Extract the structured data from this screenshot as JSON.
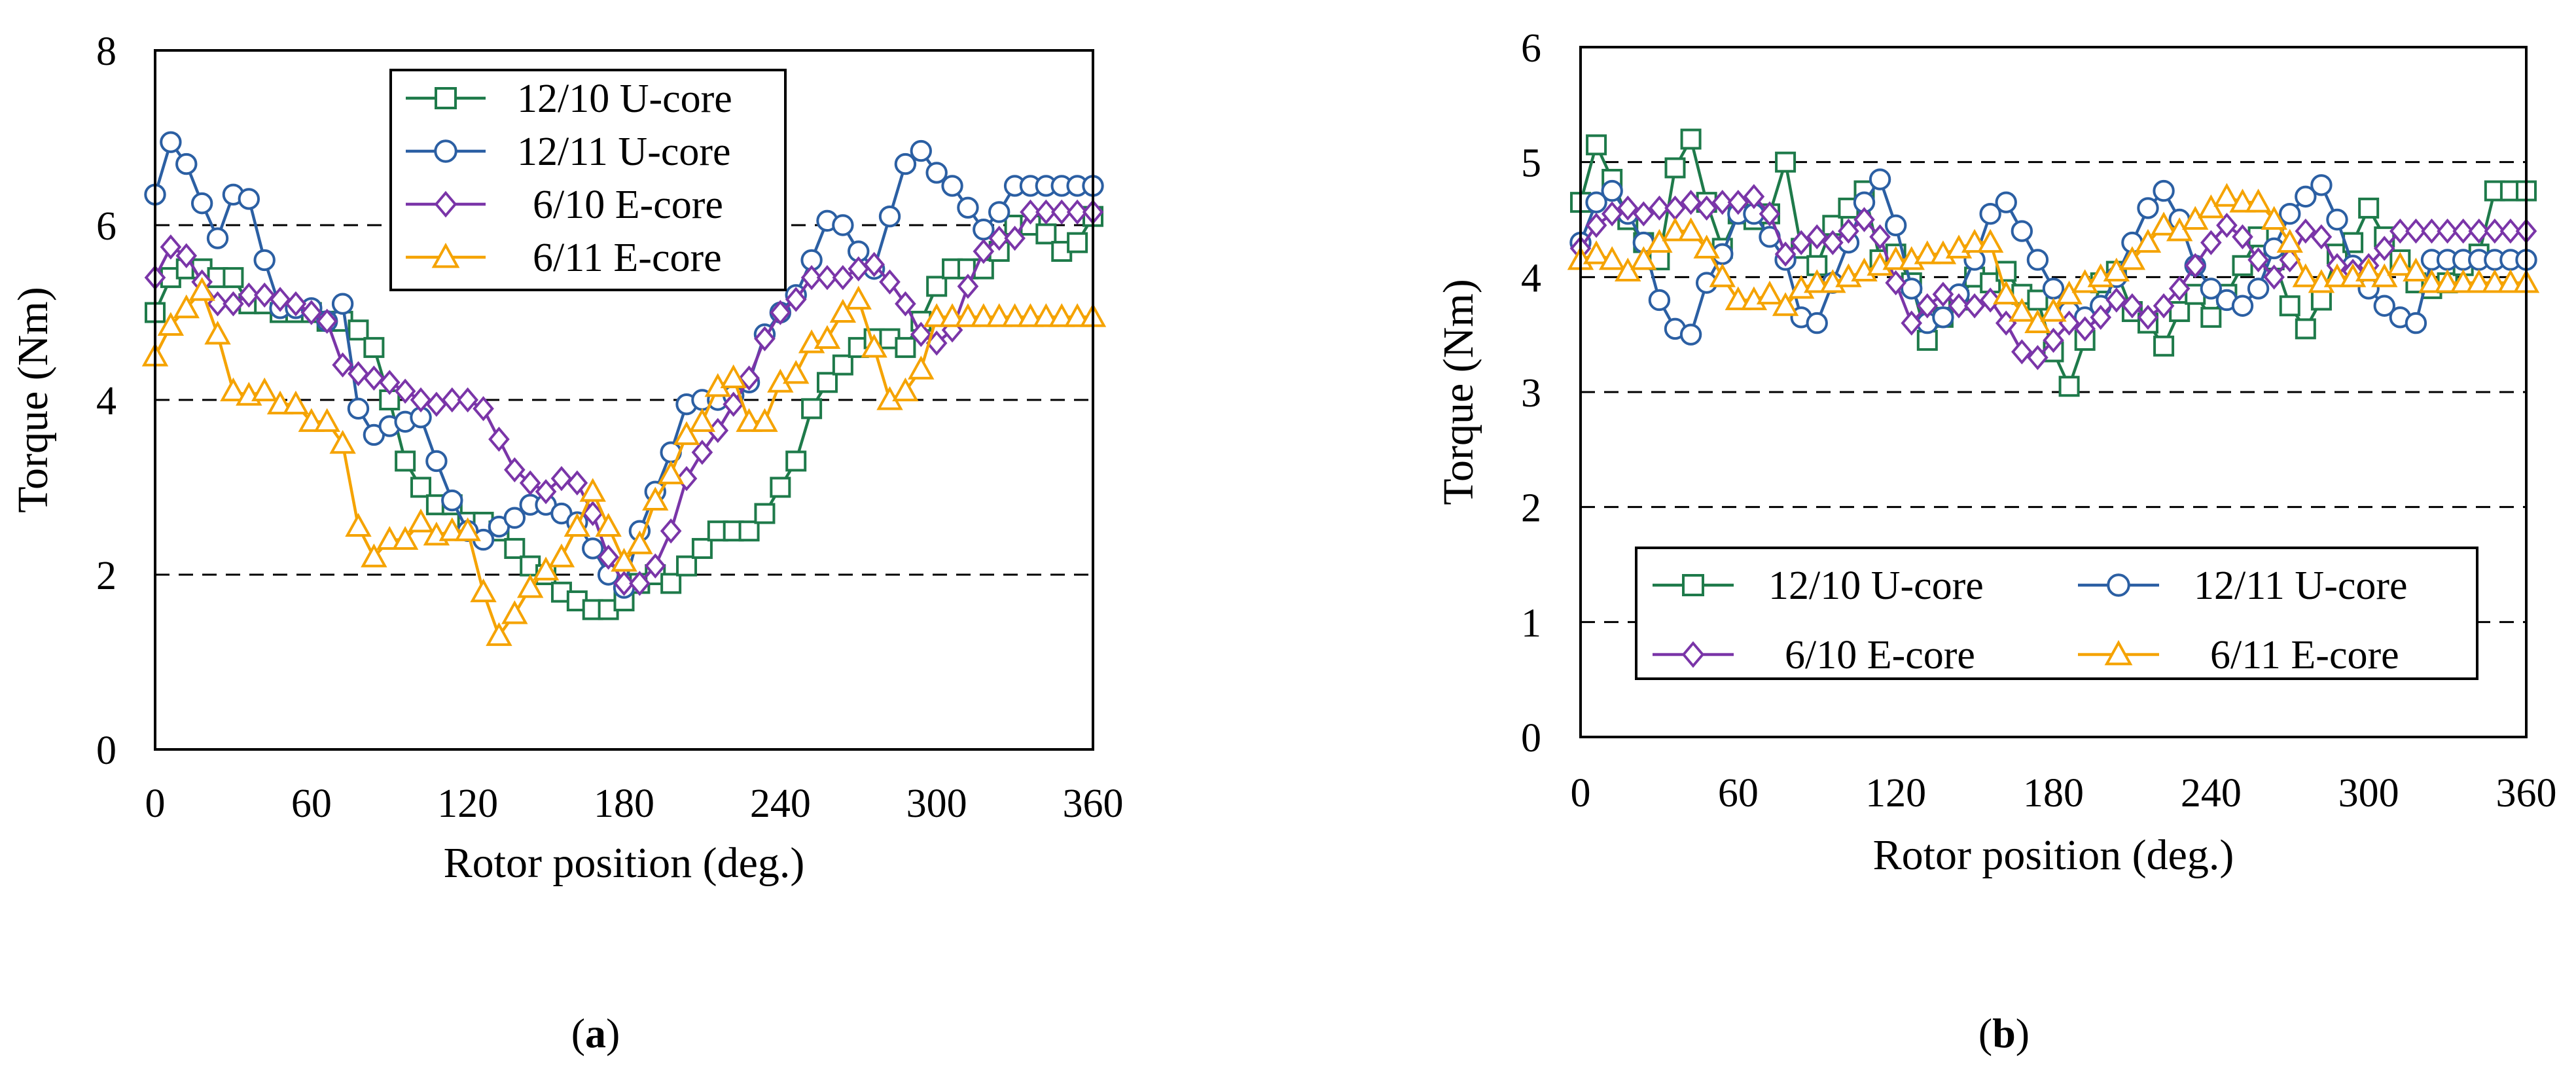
{
  "colors": {
    "12/10 U-core": "#1E7A4A",
    "12/11 U-core": "#2B5FA3",
    "6/10 E-core": "#7A35A8",
    "6/11 E-core": "#F5A300"
  },
  "panels": [
    {
      "label_prefix": "(",
      "label_letter": "a",
      "label_suffix": ")"
    },
    {
      "label_prefix": "(",
      "label_letter": "b",
      "label_suffix": ")"
    }
  ],
  "chart_data": [
    {
      "type": "line",
      "xlabel": "Rotor position (deg.)",
      "ylabel": "Torque (Nm)",
      "xlim": [
        0,
        360
      ],
      "ylim": [
        0,
        8
      ],
      "xticks": [
        "0",
        "60",
        "120",
        "180",
        "240",
        "300",
        "360"
      ],
      "yticks": [
        "0",
        "2",
        "4",
        "6",
        "8"
      ],
      "grid": "horizontal dashed at y=2, 4, 6",
      "legend_position": "top-center",
      "series": [
        {
          "name": "12/10 U-core",
          "marker": "square",
          "x": [
            0,
            6,
            12,
            18,
            24,
            30,
            36,
            42,
            48,
            54,
            60,
            66,
            72,
            78,
            84,
            90,
            96,
            102,
            108,
            114,
            120,
            126,
            132,
            138,
            144,
            150,
            156,
            162,
            168,
            174,
            180,
            186,
            192,
            198,
            204,
            210,
            216,
            222,
            228,
            234,
            240,
            246,
            252,
            258,
            264,
            270,
            276,
            282,
            288,
            294,
            300,
            306,
            312,
            318,
            324,
            330,
            336,
            342,
            348,
            354,
            360
          ],
          "y": [
            5.0,
            5.4,
            5.5,
            5.5,
            5.4,
            5.4,
            5.1,
            5.1,
            5.0,
            5.0,
            5.0,
            4.9,
            4.9,
            4.8,
            4.6,
            4.0,
            3.3,
            3.0,
            2.8,
            2.8,
            2.6,
            2.6,
            2.5,
            2.3,
            2.1,
            2.0,
            1.8,
            1.7,
            1.6,
            1.6,
            1.7,
            1.9,
            2.0,
            1.9,
            2.1,
            2.3,
            2.5,
            2.5,
            2.5,
            2.7,
            3.0,
            3.3,
            3.9,
            4.2,
            4.4,
            4.6,
            4.7,
            4.7,
            4.6,
            4.9,
            5.3,
            5.5,
            5.5,
            5.5,
            5.7,
            6.0,
            6.0,
            5.9,
            5.7,
            5.8,
            6.1
          ]
        },
        {
          "name": "12/11 U-core",
          "marker": "circle",
          "x": [
            0,
            6,
            12,
            18,
            24,
            30,
            36,
            42,
            48,
            54,
            60,
            66,
            72,
            78,
            84,
            90,
            96,
            102,
            108,
            114,
            120,
            126,
            132,
            138,
            144,
            150,
            156,
            162,
            168,
            174,
            180,
            186,
            192,
            198,
            204,
            210,
            216,
            222,
            228,
            234,
            240,
            246,
            252,
            258,
            264,
            270,
            276,
            282,
            288,
            294,
            300,
            306,
            312,
            318,
            324,
            330,
            336,
            342,
            348,
            354,
            360
          ],
          "y": [
            6.35,
            6.95,
            6.7,
            6.25,
            5.85,
            6.35,
            6.3,
            5.6,
            5.05,
            5.05,
            5.05,
            4.9,
            5.1,
            3.9,
            3.6,
            3.7,
            3.75,
            3.8,
            3.3,
            2.85,
            2.5,
            2.4,
            2.55,
            2.65,
            2.8,
            2.8,
            2.7,
            2.6,
            2.3,
            2.0,
            1.85,
            2.5,
            2.95,
            3.4,
            3.95,
            4.0,
            4.0,
            4.05,
            4.2,
            4.75,
            5.0,
            5.2,
            5.6,
            6.05,
            6.0,
            5.7,
            5.5,
            6.1,
            6.7,
            6.85,
            6.6,
            6.45,
            6.2,
            5.95,
            6.15,
            6.45,
            6.45,
            6.45,
            6.45,
            6.45,
            6.45
          ]
        },
        {
          "name": "6/10 E-core",
          "marker": "diamond",
          "x": [
            0,
            6,
            12,
            18,
            24,
            30,
            36,
            42,
            48,
            54,
            60,
            66,
            72,
            78,
            84,
            90,
            96,
            102,
            108,
            114,
            120,
            126,
            132,
            138,
            144,
            150,
            156,
            162,
            168,
            174,
            180,
            186,
            192,
            198,
            204,
            210,
            216,
            222,
            228,
            234,
            240,
            246,
            252,
            258,
            264,
            270,
            276,
            282,
            288,
            294,
            300,
            306,
            312,
            318,
            324,
            330,
            336,
            342,
            348,
            354,
            360
          ],
          "y": [
            5.4,
            5.75,
            5.65,
            5.35,
            5.1,
            5.1,
            5.2,
            5.2,
            5.15,
            5.1,
            5.0,
            4.9,
            4.4,
            4.3,
            4.25,
            4.2,
            4.1,
            4.0,
            3.95,
            4.0,
            4.0,
            3.9,
            3.55,
            3.2,
            3.05,
            2.95,
            3.1,
            3.05,
            2.7,
            2.2,
            1.9,
            1.9,
            2.1,
            2.5,
            3.1,
            3.4,
            3.65,
            3.95,
            4.25,
            4.7,
            5.0,
            5.15,
            5.4,
            5.4,
            5.4,
            5.5,
            5.55,
            5.35,
            5.1,
            4.75,
            4.65,
            4.8,
            5.3,
            5.7,
            5.85,
            5.85,
            6.15,
            6.15,
            6.15,
            6.15,
            6.15
          ]
        },
        {
          "name": "6/11 E-core",
          "marker": "triangle",
          "x": [
            0,
            6,
            12,
            18,
            24,
            30,
            36,
            42,
            48,
            54,
            60,
            66,
            72,
            78,
            84,
            90,
            96,
            102,
            108,
            114,
            120,
            126,
            132,
            138,
            144,
            150,
            156,
            162,
            168,
            174,
            180,
            186,
            192,
            198,
            204,
            210,
            216,
            222,
            228,
            234,
            240,
            246,
            252,
            258,
            264,
            270,
            276,
            282,
            288,
            294,
            300,
            306,
            312,
            318,
            324,
            330,
            336,
            342,
            348,
            354,
            360
          ],
          "y": [
            4.5,
            4.85,
            5.05,
            5.25,
            4.75,
            4.1,
            4.05,
            4.1,
            3.95,
            3.95,
            3.75,
            3.75,
            3.5,
            2.55,
            2.2,
            2.4,
            2.4,
            2.6,
            2.45,
            2.5,
            2.5,
            1.8,
            1.3,
            1.55,
            1.85,
            2.05,
            2.2,
            2.55,
            2.95,
            2.55,
            2.15,
            2.35,
            2.85,
            3.15,
            3.6,
            3.75,
            4.15,
            4.25,
            3.75,
            3.75,
            4.2,
            4.3,
            4.65,
            4.7,
            5.0,
            5.15,
            4.6,
            4.0,
            4.1,
            4.35,
            4.95,
            4.95,
            4.95,
            4.95,
            4.95,
            4.95,
            4.95,
            4.95,
            4.95,
            4.95,
            4.95
          ]
        }
      ]
    },
    {
      "type": "line",
      "xlabel": "Rotor position (deg.)",
      "ylabel": "Torque (Nm)",
      "xlim": [
        0,
        360
      ],
      "ylim": [
        0,
        6
      ],
      "xticks": [
        "0",
        "60",
        "120",
        "180",
        "240",
        "300",
        "360"
      ],
      "yticks": [
        "0",
        "1",
        "2",
        "3",
        "4",
        "5",
        "6"
      ],
      "grid": "horizontal dashed at y=1, 2, 3, 4, 5",
      "legend_position": "bottom-center",
      "series": [
        {
          "name": "12/10 U-core",
          "marker": "square",
          "x": [
            0,
            6,
            12,
            18,
            24,
            30,
            36,
            42,
            48,
            54,
            60,
            66,
            72,
            78,
            84,
            90,
            96,
            102,
            108,
            114,
            120,
            126,
            132,
            138,
            144,
            150,
            156,
            162,
            168,
            174,
            180,
            186,
            192,
            198,
            204,
            210,
            216,
            222,
            228,
            234,
            240,
            246,
            252,
            258,
            264,
            270,
            276,
            282,
            288,
            294,
            300,
            306,
            312,
            318,
            324,
            330,
            336,
            342,
            348,
            354,
            360
          ],
          "y": [
            4.65,
            5.15,
            4.85,
            4.5,
            4.3,
            4.15,
            4.95,
            5.2,
            4.65,
            4.25,
            4.55,
            4.5,
            4.55,
            5.0,
            4.25,
            4.1,
            4.45,
            4.6,
            4.75,
            4.15,
            4.2,
            3.95,
            3.45,
            3.65,
            3.8,
            4.0,
            3.95,
            4.05,
            3.85,
            3.8,
            3.35,
            3.05,
            3.45,
            3.95,
            4.05,
            3.7,
            3.6,
            3.4,
            3.7,
            3.85,
            3.65,
            3.85,
            4.1,
            4.35,
            4.15,
            3.75,
            3.55,
            3.8,
            4.2,
            4.3,
            4.6,
            4.35,
            4.15,
            3.95,
            3.9,
            3.95,
            4.1,
            4.2,
            4.75,
            4.75,
            4.75
          ]
        },
        {
          "name": "12/11 U-core",
          "marker": "circle",
          "x": [
            0,
            6,
            12,
            18,
            24,
            30,
            36,
            42,
            48,
            54,
            60,
            66,
            72,
            78,
            84,
            90,
            96,
            102,
            108,
            114,
            120,
            126,
            132,
            138,
            144,
            150,
            156,
            162,
            168,
            174,
            180,
            186,
            192,
            198,
            204,
            210,
            216,
            222,
            228,
            234,
            240,
            246,
            252,
            258,
            264,
            270,
            276,
            282,
            288,
            294,
            300,
            306,
            312,
            318,
            324,
            330,
            336,
            342,
            348,
            354,
            360
          ],
          "y": [
            4.3,
            4.65,
            4.75,
            4.55,
            4.3,
            3.8,
            3.55,
            3.5,
            3.95,
            4.2,
            4.55,
            4.55,
            4.35,
            4.15,
            3.65,
            3.6,
            3.95,
            4.3,
            4.65,
            4.85,
            4.45,
            3.9,
            3.6,
            3.65,
            3.85,
            4.15,
            4.55,
            4.65,
            4.4,
            4.15,
            3.9,
            3.7,
            3.65,
            3.75,
            4.0,
            4.3,
            4.6,
            4.75,
            4.5,
            4.1,
            3.9,
            3.8,
            3.75,
            3.9,
            4.25,
            4.55,
            4.7,
            4.8,
            4.5,
            4.1,
            3.9,
            3.75,
            3.65,
            3.6,
            4.15,
            4.15,
            4.15,
            4.15,
            4.15,
            4.15,
            4.15
          ]
        },
        {
          "name": "6/10 E-core",
          "marker": "diamond",
          "x": [
            0,
            6,
            12,
            18,
            24,
            30,
            36,
            42,
            48,
            54,
            60,
            66,
            72,
            78,
            84,
            90,
            96,
            102,
            108,
            114,
            120,
            126,
            132,
            138,
            144,
            150,
            156,
            162,
            168,
            174,
            180,
            186,
            192,
            198,
            204,
            210,
            216,
            222,
            228,
            234,
            240,
            246,
            252,
            258,
            264,
            270,
            276,
            282,
            288,
            294,
            300,
            306,
            312,
            318,
            324,
            330,
            336,
            342,
            348,
            354,
            360
          ],
          "y": [
            4.25,
            4.45,
            4.55,
            4.6,
            4.55,
            4.6,
            4.6,
            4.65,
            4.6,
            4.65,
            4.65,
            4.7,
            4.55,
            4.2,
            4.3,
            4.35,
            4.3,
            4.4,
            4.5,
            4.35,
            3.95,
            3.6,
            3.75,
            3.85,
            3.75,
            3.75,
            3.8,
            3.6,
            3.35,
            3.3,
            3.45,
            3.6,
            3.55,
            3.65,
            3.8,
            3.75,
            3.65,
            3.75,
            3.9,
            4.1,
            4.3,
            4.45,
            4.35,
            4.15,
            4.0,
            4.15,
            4.4,
            4.35,
            4.1,
            4.05,
            4.1,
            4.25,
            4.4,
            4.4,
            4.4,
            4.4,
            4.4,
            4.4,
            4.4,
            4.4,
            4.4
          ]
        },
        {
          "name": "6/11 E-core",
          "marker": "triangle",
          "x": [
            0,
            6,
            12,
            18,
            24,
            30,
            36,
            42,
            48,
            54,
            60,
            66,
            72,
            78,
            84,
            90,
            96,
            102,
            108,
            114,
            120,
            126,
            132,
            138,
            144,
            150,
            156,
            162,
            168,
            174,
            180,
            186,
            192,
            198,
            204,
            210,
            216,
            222,
            228,
            234,
            240,
            246,
            252,
            258,
            264,
            270,
            276,
            282,
            288,
            294,
            300,
            306,
            312,
            318,
            324,
            330,
            336,
            342,
            348,
            354,
            360
          ],
          "y": [
            4.15,
            4.2,
            4.15,
            4.05,
            4.15,
            4.3,
            4.4,
            4.4,
            4.25,
            4.0,
            3.8,
            3.8,
            3.85,
            3.75,
            3.9,
            3.95,
            3.95,
            4.0,
            4.05,
            4.1,
            4.15,
            4.15,
            4.2,
            4.2,
            4.25,
            4.3,
            4.3,
            3.85,
            3.7,
            3.6,
            3.7,
            3.85,
            3.95,
            4.0,
            4.05,
            4.15,
            4.3,
            4.45,
            4.4,
            4.5,
            4.6,
            4.7,
            4.65,
            4.65,
            4.5,
            4.3,
            4.0,
            3.95,
            4.0,
            4.0,
            4.05,
            4.0,
            4.1,
            4.05,
            3.95,
            3.95,
            3.95,
            3.95,
            3.95,
            3.95,
            3.95
          ]
        }
      ]
    }
  ]
}
